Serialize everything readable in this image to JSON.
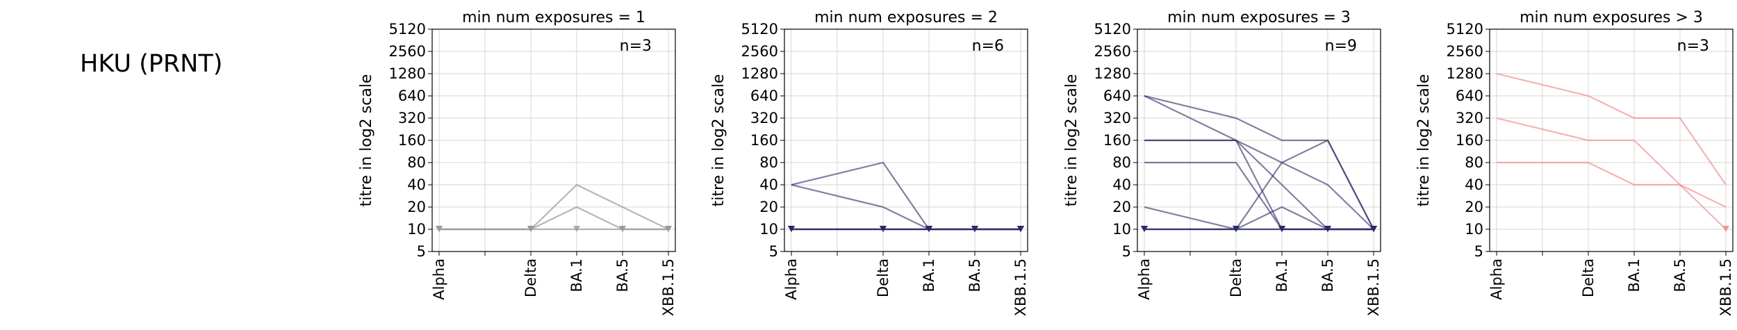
{
  "page": {
    "title": "HKU (PRNT)"
  },
  "chart_data": [
    {
      "type": "line",
      "title": "min num exposures = 1",
      "annotation": "n=3",
      "ylabel": "titre in log2 scale",
      "xlabel": "",
      "categories": [
        "Alpha",
        "",
        "Delta",
        "BA.1",
        "BA.5",
        "XBB.1.5"
      ],
      "y_scale": "log2",
      "yticks": [
        5,
        10,
        20,
        40,
        80,
        160,
        320,
        640,
        1280,
        2560,
        5120
      ],
      "ylim": [
        5,
        5120
      ],
      "grid": true,
      "color": "#999999",
      "series": [
        {
          "values": [
            10,
            null,
            10,
            40,
            20,
            10
          ]
        },
        {
          "values": [
            10,
            null,
            10,
            20,
            10,
            10
          ]
        },
        {
          "values": [
            10,
            null,
            10,
            10,
            10,
            10
          ]
        }
      ]
    },
    {
      "type": "line",
      "title": "min num exposures = 2",
      "annotation": "n=6",
      "ylabel": "titre in log2 scale",
      "xlabel": "",
      "categories": [
        "Alpha",
        "",
        "Delta",
        "BA.1",
        "BA.5",
        "XBB.1.5"
      ],
      "y_scale": "log2",
      "yticks": [
        5,
        10,
        20,
        40,
        80,
        160,
        320,
        640,
        1280,
        2560,
        5120
      ],
      "ylim": [
        5,
        5120
      ],
      "grid": true,
      "color": "#2b2b64",
      "series": [
        {
          "values": [
            40,
            null,
            80,
            10,
            10,
            10
          ]
        },
        {
          "values": [
            40,
            null,
            20,
            10,
            10,
            10
          ]
        },
        {
          "values": [
            10,
            null,
            10,
            10,
            10,
            10
          ]
        },
        {
          "values": [
            10,
            null,
            10,
            10,
            10,
            10
          ]
        },
        {
          "values": [
            10,
            null,
            10,
            10,
            10,
            10
          ]
        },
        {
          "values": [
            10,
            null,
            10,
            10,
            10,
            10
          ]
        }
      ]
    },
    {
      "type": "line",
      "title": "min num exposures = 3",
      "annotation": "n=9",
      "ylabel": "titre in log2 scale",
      "xlabel": "",
      "categories": [
        "Alpha",
        "",
        "Delta",
        "BA.1",
        "BA.5",
        "XBB.1.5"
      ],
      "y_scale": "log2",
      "yticks": [
        5,
        10,
        20,
        40,
        80,
        160,
        320,
        640,
        1280,
        2560,
        5120
      ],
      "ylim": [
        5,
        5120
      ],
      "grid": true,
      "color": "#2b2b64",
      "series": [
        {
          "values": [
            640,
            null,
            320,
            160,
            160,
            10
          ]
        },
        {
          "values": [
            640,
            null,
            160,
            40,
            10,
            10
          ]
        },
        {
          "values": [
            160,
            null,
            160,
            80,
            160,
            10
          ]
        },
        {
          "values": [
            160,
            null,
            160,
            10,
            10,
            10
          ]
        },
        {
          "values": [
            80,
            null,
            80,
            10,
            10,
            10
          ]
        },
        {
          "values": [
            20,
            null,
            10,
            20,
            10,
            10
          ]
        },
        {
          "values": [
            10,
            null,
            10,
            80,
            40,
            10
          ]
        },
        {
          "values": [
            10,
            null,
            10,
            10,
            10,
            10
          ]
        },
        {
          "values": [
            10,
            null,
            10,
            10,
            10,
            10
          ]
        }
      ]
    },
    {
      "type": "line",
      "title": "min num exposures > 3",
      "annotation": "n=3",
      "ylabel": "titre in log2 scale",
      "xlabel": "",
      "categories": [
        "Alpha",
        "",
        "Delta",
        "BA.1",
        "BA.5",
        "XBB.1.5"
      ],
      "y_scale": "log2",
      "yticks": [
        5,
        10,
        20,
        40,
        80,
        160,
        320,
        640,
        1280,
        2560,
        5120
      ],
      "ylim": [
        5,
        5120
      ],
      "grid": true,
      "color": "#f08080",
      "series": [
        {
          "values": [
            1280,
            null,
            640,
            320,
            320,
            40
          ]
        },
        {
          "values": [
            320,
            null,
            160,
            160,
            40,
            10
          ]
        },
        {
          "values": [
            80,
            null,
            80,
            40,
            40,
            20
          ]
        }
      ]
    }
  ]
}
